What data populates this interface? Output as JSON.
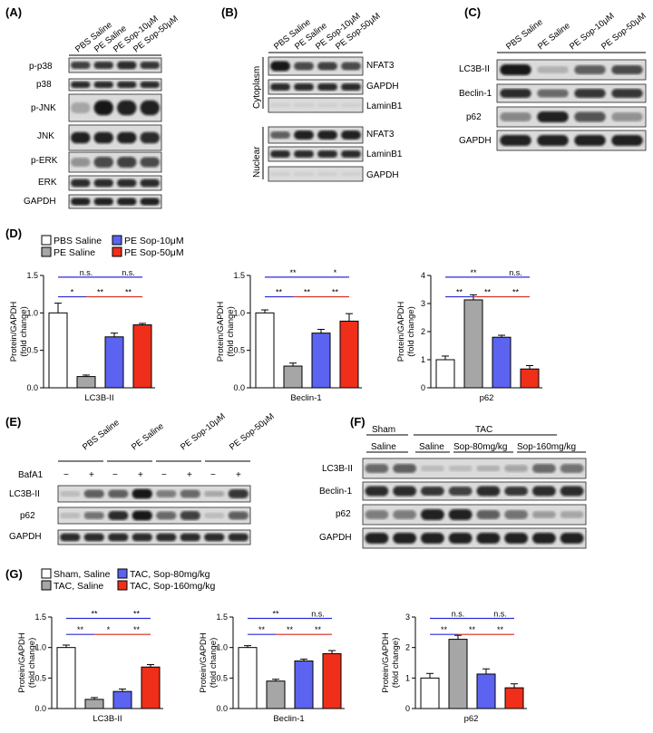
{
  "panels": {
    "A": {
      "label": "(A)",
      "lanes": [
        "PBS Saline",
        "PE Saline",
        "PE Sop-10μM",
        "PE Sop-50μM"
      ],
      "bands": [
        "p-p38",
        "p38",
        "p-JNK",
        "JNK",
        "p-ERK",
        "ERK",
        "GAPDH"
      ]
    },
    "B": {
      "label": "(B)",
      "lanes": [
        "PBS Saline",
        "PE Saline",
        "PE Sop-10μM",
        "PE Sop-50μM"
      ],
      "groups": [
        "Cytoplasm",
        "Nuclear"
      ],
      "cyto_bands": [
        "NFAT3",
        "GAPDH",
        "LaminB1"
      ],
      "nuc_bands": [
        "NFAT3",
        "LaminB1",
        "GAPDH"
      ]
    },
    "C": {
      "label": "(C)",
      "lanes": [
        "PBS Saline",
        "PE Saline",
        "PE Sop-10μM",
        "PE Sop-50μM"
      ],
      "bands": [
        "LC3B-II",
        "Beclin-1",
        "p62",
        "GAPDH"
      ]
    },
    "D": {
      "label": "(D)",
      "legend": [
        "PBS Saline",
        "PE Saline",
        "PE Sop-10μM",
        "PE Sop-50μM"
      ]
    },
    "E": {
      "label": "(E)",
      "lanes": [
        "PBS Saline",
        "PE Saline",
        "PE Sop-10μM",
        "PE Sop-50μM"
      ],
      "treatment": "BafA1",
      "signs": [
        "−",
        "+",
        "−",
        "+",
        "−",
        "+",
        "−",
        "+"
      ],
      "bands": [
        "LC3B-II",
        "p62",
        "GAPDH"
      ]
    },
    "F": {
      "label": "(F)",
      "sham": "Sham",
      "tac": "TAC",
      "subgroups": [
        "Saline",
        "Saline",
        "Sop-80mg/kg",
        "Sop-160mg/kg"
      ],
      "bands": [
        "LC3B-II",
        "Beclin-1",
        "p62",
        "GAPDH"
      ]
    },
    "G": {
      "label": "(G)",
      "legend": [
        "Sham, Saline",
        "TAC, Saline",
        "TAC, Sop-80mg/kg",
        "TAC, Sop-160mg/kg"
      ]
    }
  },
  "colors": {
    "white": "#ffffff",
    "gray": "#a6a6a6",
    "blue": "#5b63f0",
    "red": "#ef2f1a",
    "sig_blue": "#2b2bd6",
    "sig_red": "#d42a1a"
  },
  "chart_data": [
    {
      "id": "D1",
      "type": "bar",
      "xlabel": "LC3B-II",
      "ylabel": "Protein/GAPDH\n(fold change)",
      "ylim": [
        0,
        1.5
      ],
      "yticks": [
        0.0,
        0.5,
        1.0,
        1.5
      ],
      "values": [
        1.0,
        0.15,
        0.68,
        0.84
      ],
      "errors": [
        0.13,
        0.02,
        0.05,
        0.02
      ],
      "sig": [
        {
          "from": 0,
          "to": 2,
          "text": "n.s.",
          "c": "blue"
        },
        {
          "from": 2,
          "to": 3,
          "text": "n.s.",
          "c": "blue"
        },
        {
          "from": 0,
          "to": 1,
          "text": "*",
          "c": "blue"
        },
        {
          "from": 1,
          "to": 2,
          "text": "**",
          "c": "red"
        },
        {
          "from": 2,
          "to": 3,
          "text": "**",
          "c": "red"
        }
      ]
    },
    {
      "id": "D2",
      "type": "bar",
      "xlabel": "Beclin-1",
      "ylabel": "Protein/GAPDH\n(fold change)",
      "ylim": [
        0,
        1.5
      ],
      "yticks": [
        0.0,
        0.5,
        1.0,
        1.5
      ],
      "values": [
        1.0,
        0.29,
        0.73,
        0.89
      ],
      "errors": [
        0.04,
        0.04,
        0.05,
        0.1
      ],
      "sig": [
        {
          "from": 0,
          "to": 2,
          "text": "**",
          "c": "blue"
        },
        {
          "from": 2,
          "to": 3,
          "text": "*",
          "c": "blue"
        },
        {
          "from": 0,
          "to": 1,
          "text": "**",
          "c": "blue"
        },
        {
          "from": 1,
          "to": 2,
          "text": "**",
          "c": "red"
        },
        {
          "from": 2,
          "to": 3,
          "text": "**",
          "c": "red"
        }
      ]
    },
    {
      "id": "D3",
      "type": "bar",
      "xlabel": "p62",
      "ylabel": "Protein/GAPDH\n(fold change)",
      "ylim": [
        0,
        4
      ],
      "yticks": [
        0,
        1,
        2,
        3,
        4
      ],
      "values": [
        1.0,
        3.13,
        1.8,
        0.67
      ],
      "errors": [
        0.13,
        0.18,
        0.07,
        0.12
      ],
      "sig": [
        {
          "from": 0,
          "to": 2,
          "text": "**",
          "c": "blue"
        },
        {
          "from": 2,
          "to": 3,
          "text": "n.s.",
          "c": "blue"
        },
        {
          "from": 0,
          "to": 1,
          "text": "**",
          "c": "blue"
        },
        {
          "from": 1,
          "to": 2,
          "text": "**",
          "c": "red"
        },
        {
          "from": 2,
          "to": 3,
          "text": "**",
          "c": "red"
        }
      ]
    },
    {
      "id": "G1",
      "type": "bar",
      "xlabel": "LC3B-II",
      "ylabel": "Protein/GAPDH\n(fold change)",
      "ylim": [
        0,
        1.5
      ],
      "yticks": [
        0.0,
        0.5,
        1.0,
        1.5
      ],
      "values": [
        1.0,
        0.15,
        0.28,
        0.68
      ],
      "errors": [
        0.04,
        0.03,
        0.04,
        0.04
      ],
      "sig": [
        {
          "from": 0,
          "to": 2,
          "text": "**",
          "c": "blue"
        },
        {
          "from": 2,
          "to": 3,
          "text": "**",
          "c": "blue"
        },
        {
          "from": 0,
          "to": 1,
          "text": "**",
          "c": "blue"
        },
        {
          "from": 1,
          "to": 2,
          "text": "*",
          "c": "red"
        },
        {
          "from": 2,
          "to": 3,
          "text": "**",
          "c": "red"
        }
      ]
    },
    {
      "id": "G2",
      "type": "bar",
      "xlabel": "Beclin-1",
      "ylabel": "Protein/GAPDH\n(fold change)",
      "ylim": [
        0,
        1.5
      ],
      "yticks": [
        0.0,
        0.5,
        1.0,
        1.5
      ],
      "values": [
        1.0,
        0.45,
        0.78,
        0.9
      ],
      "errors": [
        0.03,
        0.03,
        0.03,
        0.05
      ],
      "sig": [
        {
          "from": 0,
          "to": 2,
          "text": "**",
          "c": "blue"
        },
        {
          "from": 2,
          "to": 3,
          "text": "n.s.",
          "c": "blue"
        },
        {
          "from": 0,
          "to": 1,
          "text": "**",
          "c": "blue"
        },
        {
          "from": 1,
          "to": 2,
          "text": "**",
          "c": "red"
        },
        {
          "from": 2,
          "to": 3,
          "text": "**",
          "c": "red"
        }
      ]
    },
    {
      "id": "G3",
      "type": "bar",
      "xlabel": "p62",
      "ylabel": "Protein/GAPDH\n(fold change)",
      "ylim": [
        0,
        3
      ],
      "yticks": [
        0,
        1,
        2,
        3
      ],
      "values": [
        1.0,
        2.27,
        1.13,
        0.68
      ],
      "errors": [
        0.15,
        0.13,
        0.17,
        0.13
      ],
      "sig": [
        {
          "from": 0,
          "to": 2,
          "text": "n.s.",
          "c": "blue"
        },
        {
          "from": 2,
          "to": 3,
          "text": "n.s.",
          "c": "blue"
        },
        {
          "from": 0,
          "to": 1,
          "text": "**",
          "c": "blue"
        },
        {
          "from": 1,
          "to": 2,
          "text": "**",
          "c": "red"
        },
        {
          "from": 2,
          "to": 3,
          "text": "**",
          "c": "red"
        }
      ]
    }
  ]
}
